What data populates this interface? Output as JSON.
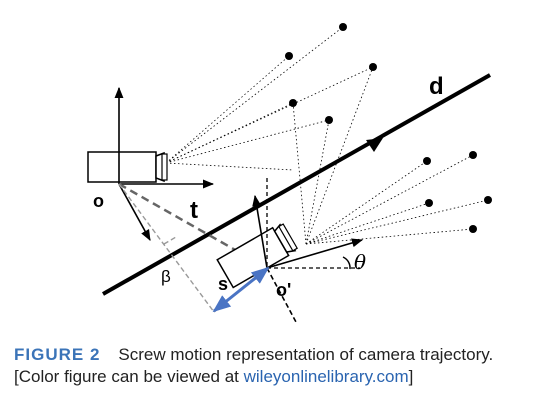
{
  "diagram": {
    "labels": {
      "d": "d",
      "o": "o",
      "t": "t",
      "beta": "β",
      "s": "s",
      "o_prime": "o'",
      "theta": "θ"
    },
    "colors": {
      "line": "#000000",
      "dashed_gray": "#999999",
      "screw_arrow": "#4a74c4"
    }
  },
  "caption": {
    "figure_label": "FIGURE 2",
    "text": "Screw motion representation of camera trajectory.",
    "line2_prefix": "[Color figure can be viewed at ",
    "link": "wileyonlinelibrary.com",
    "line2_suffix": "]"
  }
}
